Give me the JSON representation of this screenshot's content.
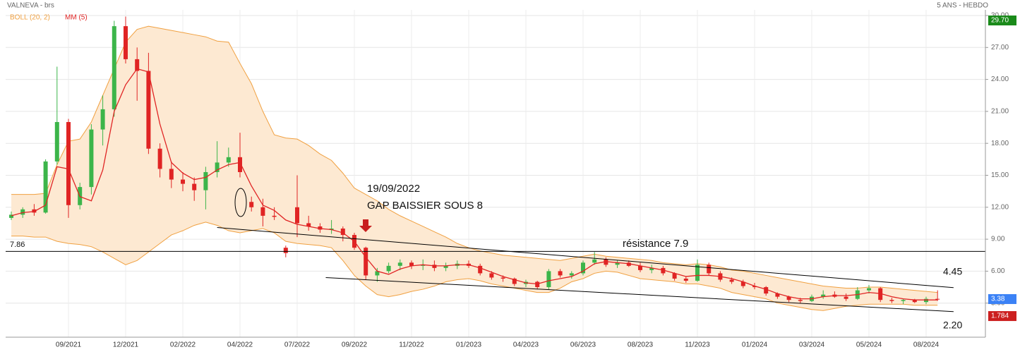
{
  "chart_data": {
    "type": "candlestick",
    "title": "VALNEVA - brs",
    "subtitle": "5 ANS - HEBDO",
    "categories": [
      null,
      null,
      null,
      null,
      null,
      "09/2021",
      null,
      null,
      null,
      null,
      "12/2021",
      null,
      null,
      null,
      null,
      "02/2022",
      null,
      null,
      null,
      null,
      "04/2022",
      null,
      null,
      null,
      null,
      "07/2022",
      null,
      null,
      null,
      null,
      "09/2022",
      null,
      null,
      null,
      null,
      "11/2022",
      null,
      null,
      null,
      null,
      "01/2023",
      null,
      null,
      null,
      null,
      "04/2023",
      null,
      null,
      null,
      null,
      "06/2023",
      null,
      null,
      null,
      null,
      "08/2023",
      null,
      null,
      null,
      null,
      "11/2023",
      null,
      null,
      null,
      null,
      "01/2024",
      null,
      null,
      null,
      null,
      "03/2024",
      null,
      null,
      null,
      null,
      "05/2024",
      null,
      null,
      null,
      null,
      "08/2024",
      null
    ],
    "open": [
      11.0,
      11.3,
      11.8,
      11.5,
      16.3,
      20.0,
      12.2,
      13.9,
      19.3,
      21.2,
      29.0,
      25.9,
      24.8,
      17.5,
      15.6,
      14.6,
      14.2,
      13.6,
      15.3,
      16.2,
      16.7,
      12.5,
      12.0,
      11.2,
      8.2,
      12.0,
      10.5,
      10.2,
      9.9,
      10.0,
      9.4,
      8.2,
      5.6,
      6.0,
      6.5,
      6.8,
      6.5,
      6.6,
      6.3,
      6.5,
      6.7,
      6.5,
      5.8,
      5.4,
      5.3,
      4.8,
      5.0,
      4.5,
      6.0,
      5.6,
      5.8,
      6.8,
      7.1,
      6.6,
      6.8,
      6.5,
      6.1,
      6.3,
      5.8,
      5.3,
      5.1,
      6.6,
      5.8,
      5.2,
      5.0,
      4.6,
      4.5,
      3.9,
      3.6,
      3.3,
      3.2,
      3.6,
      3.8,
      3.6,
      3.4,
      4.2,
      4.4,
      3.3,
      3.2,
      3.3,
      3.1,
      3.4
    ],
    "high": [
      11.6,
      12.0,
      12.3,
      16.5,
      25.2,
      20.3,
      14.3,
      19.8,
      22.5,
      29.5,
      29.9,
      27.0,
      26.5,
      18.0,
      16.3,
      15.3,
      14.8,
      15.8,
      18.2,
      17.6,
      19.0,
      13.0,
      12.8,
      12.0,
      8.4,
      15.0,
      11.2,
      10.5,
      10.8,
      10.2,
      9.6,
      8.3,
      6.3,
      6.8,
      7.1,
      7.0,
      7.1,
      7.0,
      6.8,
      7.0,
      7.0,
      6.7,
      6.0,
      5.6,
      5.4,
      5.2,
      5.1,
      6.2,
      6.2,
      6.0,
      7.0,
      7.8,
      7.3,
      7.0,
      7.0,
      6.8,
      6.6,
      6.5,
      5.9,
      5.5,
      7.1,
      6.8,
      6.0,
      5.4,
      5.2,
      4.9,
      4.6,
      4.0,
      3.7,
      3.5,
      3.8,
      4.2,
      4.1,
      3.9,
      4.5,
      4.7,
      4.5,
      3.5,
      3.4,
      3.4,
      3.6,
      4.2
    ],
    "low": [
      10.8,
      11.0,
      11.2,
      11.4,
      16.0,
      11.0,
      11.8,
      13.2,
      17.8,
      20.5,
      25.5,
      22.0,
      17.0,
      14.8,
      13.8,
      13.5,
      12.6,
      11.8,
      14.8,
      15.8,
      14.8,
      11.6,
      10.2,
      10.8,
      7.3,
      9.2,
      9.8,
      9.6,
      9.5,
      8.8,
      8.0,
      5.2,
      5.0,
      5.8,
      6.1,
      6.2,
      6.1,
      6.0,
      6.0,
      6.2,
      6.3,
      5.6,
      5.2,
      5.0,
      4.6,
      4.5,
      4.3,
      4.3,
      5.4,
      5.3,
      5.6,
      6.6,
      6.4,
      6.3,
      6.4,
      5.9,
      5.8,
      5.6,
      5.1,
      4.9,
      5.0,
      5.6,
      5.0,
      4.8,
      4.4,
      4.3,
      3.7,
      3.4,
      3.1,
      3.0,
      3.1,
      3.4,
      3.5,
      3.2,
      3.3,
      3.9,
      3.1,
      3.0,
      2.9,
      3.0,
      2.9,
      3.2
    ],
    "close": [
      11.3,
      11.8,
      11.5,
      16.3,
      20.0,
      12.2,
      13.9,
      19.3,
      21.2,
      29.0,
      25.9,
      24.8,
      17.5,
      15.6,
      14.6,
      14.2,
      13.6,
      15.3,
      16.2,
      16.7,
      15.3,
      12.0,
      11.2,
      11.1,
      7.7,
      10.5,
      10.2,
      9.9,
      10.0,
      9.4,
      8.2,
      5.6,
      6.0,
      6.5,
      6.8,
      6.5,
      6.6,
      6.3,
      6.5,
      6.7,
      6.5,
      5.8,
      5.4,
      5.3,
      4.8,
      5.0,
      4.5,
      6.0,
      5.6,
      5.8,
      6.8,
      7.1,
      6.6,
      6.8,
      6.5,
      6.1,
      6.3,
      5.8,
      5.3,
      5.1,
      6.6,
      5.8,
      5.2,
      5.0,
      4.6,
      4.5,
      3.9,
      3.6,
      3.3,
      3.2,
      3.6,
      3.8,
      3.6,
      3.4,
      4.2,
      4.4,
      3.3,
      3.2,
      3.3,
      3.1,
      3.4,
      3.38
    ],
    "up_color": "#3cb54a",
    "down_color": "#e02424",
    "bollinger": {
      "name": "BOLL (20, 2)",
      "color": "#f0a040",
      "fill": "#fde9d2",
      "upper": [
        13.2,
        13.2,
        13.2,
        13.3,
        16.0,
        18.2,
        18.4,
        20.0,
        22.5,
        25.0,
        27.5,
        28.7,
        29.0,
        28.8,
        28.6,
        28.4,
        28.2,
        28.0,
        27.6,
        27.5,
        25.5,
        23.6,
        21.0,
        18.8,
        18.5,
        18.4,
        17.8,
        17.0,
        16.4,
        15.2,
        13.8,
        13.2,
        12.6,
        11.8,
        11.2,
        10.7,
        10.2,
        9.7,
        9.2,
        8.6,
        8.2,
        7.9,
        7.7,
        7.5,
        7.4,
        7.3,
        7.2,
        7.1,
        7.0,
        7.2,
        7.4,
        7.6,
        7.4,
        7.3,
        7.2,
        7.1,
        7.0,
        6.8,
        6.7,
        6.6,
        6.7,
        6.6,
        6.4,
        6.1,
        6.0,
        5.8,
        5.6,
        5.4,
        5.2,
        5.0,
        4.8,
        4.6,
        4.5,
        4.4,
        4.4,
        4.5,
        4.5,
        4.4,
        4.3,
        4.2,
        4.1,
        4.0
      ],
      "lower": [
        9.3,
        9.3,
        9.2,
        9.2,
        8.8,
        8.6,
        8.5,
        8.3,
        7.8,
        7.2,
        6.6,
        7.0,
        7.8,
        8.6,
        9.4,
        9.8,
        10.3,
        10.6,
        10.3,
        9.8,
        9.6,
        9.8,
        10.0,
        9.6,
        8.8,
        8.6,
        8.5,
        8.4,
        8.2,
        7.0,
        5.6,
        4.6,
        3.8,
        3.6,
        3.8,
        4.1,
        4.3,
        4.6,
        5.0,
        5.2,
        5.3,
        5.1,
        4.8,
        4.6,
        4.4,
        4.2,
        4.0,
        4.0,
        4.4,
        5.0,
        5.3,
        5.8,
        6.0,
        5.9,
        5.6,
        5.3,
        5.2,
        5.1,
        5.0,
        4.8,
        4.8,
        4.6,
        4.4,
        4.0,
        3.8,
        3.6,
        3.4,
        3.0,
        2.8,
        2.6,
        2.4,
        2.3,
        2.5,
        2.7,
        2.8,
        2.9,
        2.9,
        2.9,
        2.9,
        2.8,
        2.8,
        2.8
      ]
    },
    "moving_average": {
      "name": "MM (5)",
      "color": "#e02424",
      "values": [
        11.2,
        11.5,
        11.6,
        12.2,
        15.8,
        15.6,
        13.0,
        12.6,
        15.5,
        21.0,
        23.5,
        25.0,
        24.7,
        19.8,
        16.2,
        15.2,
        14.6,
        14.8,
        15.5,
        16.0,
        16.2,
        14.0,
        12.2,
        11.7,
        10.8,
        10.4,
        10.2,
        10.0,
        9.9,
        9.6,
        8.8,
        7.3,
        6.0,
        5.7,
        6.2,
        6.5,
        6.6,
        6.5,
        6.5,
        6.6,
        6.6,
        6.3,
        5.9,
        5.5,
        5.2,
        4.9,
        4.8,
        5.1,
        5.3,
        5.5,
        6.0,
        6.7,
        6.9,
        6.8,
        6.7,
        6.5,
        6.3,
        6.1,
        5.8,
        5.5,
        5.6,
        5.6,
        5.5,
        5.3,
        5.0,
        4.6,
        4.3,
        3.9,
        3.6,
        3.4,
        3.4,
        3.6,
        3.7,
        3.7,
        3.8,
        4.0,
        3.9,
        3.6,
        3.4,
        3.3,
        3.3,
        3.3
      ]
    },
    "ylim": [
      0,
      30
    ],
    "yticks": [
      {
        "value": 3,
        "label": "3.00"
      },
      {
        "value": 6,
        "label": "6.00"
      },
      {
        "value": 9,
        "label": "9.00"
      },
      {
        "value": 12,
        "label": "12.00"
      },
      {
        "value": 15,
        "label": "15.00"
      },
      {
        "value": 18,
        "label": "18.00"
      },
      {
        "value": 21,
        "label": "21.00"
      },
      {
        "value": 24,
        "label": "24.00"
      },
      {
        "value": 27,
        "label": "27.00"
      },
      {
        "value": 30,
        "label": "30.00"
      }
    ],
    "grid": true,
    "hline": {
      "value": 7.86,
      "color": "#000000"
    },
    "trendlines": [
      {
        "x": [
          18,
          82.4
        ],
        "values": [
          10.1,
          4.45
        ]
      },
      {
        "x": [
          27.5,
          82.4
        ],
        "values": [
          5.4,
          2.2
        ],
        "end_label": "2.20"
      }
    ],
    "right_markers": [
      {
        "value": 29.7,
        "label": "29.70",
        "color": "#1a8a1a"
      },
      {
        "value": 3.38,
        "color": "#3b82f6"
      },
      {
        "value": 1.784,
        "color": "#cc1f1f"
      }
    ],
    "annotations": [
      "19/09/2022",
      "GAP BAISSIER SOUS 8",
      "résistance 7.9"
    ]
  }
}
